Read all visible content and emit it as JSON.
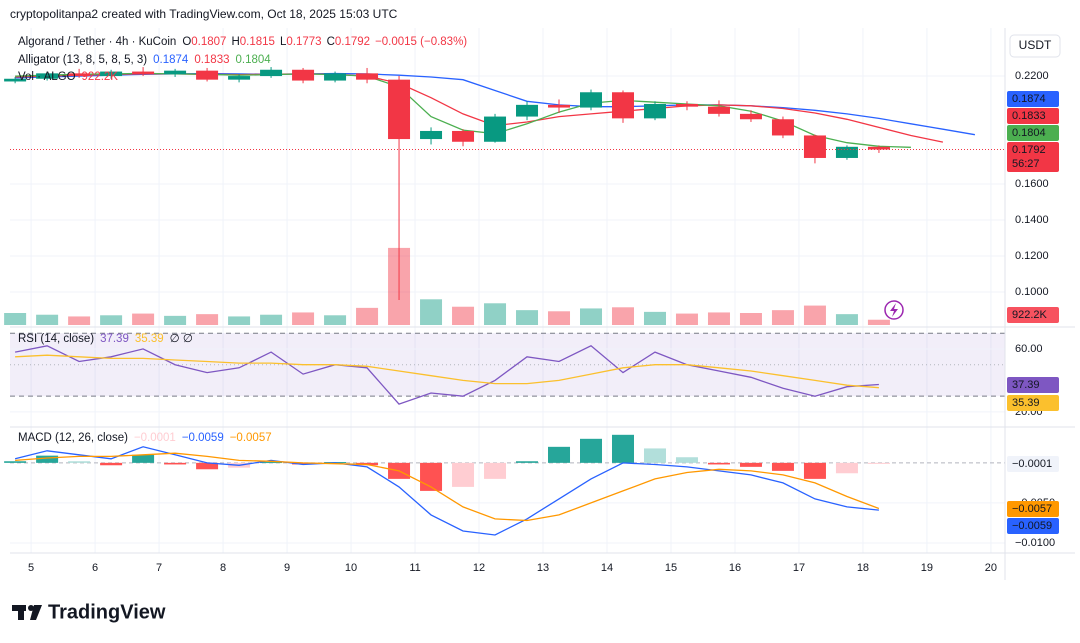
{
  "header": "cryptopolitanpa2 created with TradingView.com, Oct 18, 2025 15:03 UTC",
  "footer": "TradingView",
  "time_axis": {
    "xlim": [
      4.67,
      20.22
    ],
    "xticks": [
      5,
      6,
      7,
      8,
      9,
      10,
      11,
      12,
      13,
      14,
      15,
      16,
      17,
      18,
      19,
      20
    ]
  },
  "chart_data": [
    {
      "type": "candlestick",
      "title": "Algorand / Tether · 4h · KuCoin",
      "ohlc_labels": [
        "O",
        "H",
        "L",
        "C"
      ],
      "change": "−0.0015 (−0.83%)",
      "currency": "USDT",
      "countdown": "56:27",
      "up_color": "#089981",
      "down_color": "#f23645",
      "x": [
        4.75,
        5.25,
        5.75,
        6.25,
        6.75,
        7.25,
        7.75,
        8.25,
        8.75,
        9.25,
        9.75,
        10.25,
        10.75,
        11.25,
        11.75,
        12.25,
        12.75,
        13.25,
        13.75,
        14.25,
        14.75,
        15.25,
        15.75,
        16.25,
        16.75,
        17.25,
        17.75,
        18.25
      ],
      "open": [
        0.217,
        0.2185,
        0.2215,
        0.22,
        0.2225,
        0.221,
        0.223,
        0.218,
        0.22,
        0.2235,
        0.2175,
        0.2215,
        0.218,
        0.185,
        0.1895,
        0.1835,
        0.1975,
        0.204,
        0.2025,
        0.211,
        0.1965,
        0.2045,
        0.203,
        0.199,
        0.196,
        0.187,
        0.1745,
        0.1807
      ],
      "high": [
        0.2195,
        0.2225,
        0.224,
        0.2235,
        0.225,
        0.224,
        0.2245,
        0.221,
        0.225,
        0.2245,
        0.2225,
        0.2245,
        0.22,
        0.1915,
        0.1905,
        0.199,
        0.206,
        0.207,
        0.2125,
        0.212,
        0.206,
        0.206,
        0.2065,
        0.201,
        0.1975,
        0.1875,
        0.1815,
        0.1815
      ],
      "low": [
        0.216,
        0.2175,
        0.219,
        0.2185,
        0.22,
        0.2195,
        0.217,
        0.2165,
        0.219,
        0.216,
        0.2165,
        0.216,
        0.0956,
        0.182,
        0.181,
        0.183,
        0.1955,
        0.1995,
        0.201,
        0.194,
        0.1955,
        0.201,
        0.1975,
        0.1945,
        0.1855,
        0.1715,
        0.1735,
        0.1773
      ],
      "close": [
        0.2185,
        0.2215,
        0.22,
        0.2225,
        0.221,
        0.223,
        0.218,
        0.22,
        0.2235,
        0.2175,
        0.2215,
        0.218,
        0.185,
        0.1895,
        0.1835,
        0.1975,
        0.204,
        0.2025,
        0.211,
        0.1965,
        0.2045,
        0.203,
        0.199,
        0.196,
        0.187,
        0.1745,
        0.1807,
        0.1792
      ],
      "ylim": [
        0.0817,
        0.2467
      ],
      "yticks": [
        {
          "value": 0.22,
          "label": "0.2200"
        },
        {
          "value": 0.16,
          "label": "0.1600"
        },
        {
          "value": 0.14,
          "label": "0.1400"
        },
        {
          "value": 0.12,
          "label": "0.1200"
        },
        {
          "value": 0.1,
          "label": "0.1000"
        }
      ],
      "indicator": "Alligator (13, 8, 5, 8, 5, 3)",
      "series": [
        {
          "color": "#2962ff",
          "x": [
            4.75,
            5.25,
            5.75,
            6.25,
            6.75,
            7.25,
            7.75,
            8.25,
            8.75,
            9.25,
            9.75,
            10.25,
            10.75,
            11.25,
            11.75,
            12.25,
            12.75,
            13.25,
            13.75,
            14.25,
            14.75,
            15.25,
            15.75,
            16.25,
            16.75,
            17.25,
            17.75,
            18.25,
            18.75,
            19.25,
            19.75
          ],
          "values": [
            0.219,
            0.2195,
            0.22,
            0.2205,
            0.221,
            0.2212,
            0.2214,
            0.2212,
            0.221,
            0.2212,
            0.2214,
            0.2212,
            0.2205,
            0.2195,
            0.218,
            0.212,
            0.206,
            0.204,
            0.203,
            0.203,
            0.2035,
            0.204,
            0.204,
            0.2035,
            0.2025,
            0.201,
            0.199,
            0.1965,
            0.1935,
            0.1905,
            0.1874
          ]
        },
        {
          "color": "#f23645",
          "x": [
            4.75,
            5.25,
            5.75,
            6.25,
            6.75,
            7.25,
            7.75,
            8.25,
            8.75,
            9.25,
            9.75,
            10.25,
            10.75,
            11.25,
            11.75,
            12.25,
            12.75,
            13.25,
            13.75,
            14.25,
            14.75,
            15.25,
            15.75,
            16.25,
            16.75,
            17.25,
            17.75,
            18.25,
            18.75,
            19.25
          ],
          "values": [
            0.2195,
            0.22,
            0.2205,
            0.221,
            0.2212,
            0.2212,
            0.221,
            0.2208,
            0.221,
            0.2212,
            0.221,
            0.22,
            0.216,
            0.208,
            0.199,
            0.1925,
            0.1945,
            0.1975,
            0.199,
            0.2005,
            0.202,
            0.2035,
            0.204,
            0.2035,
            0.202,
            0.1995,
            0.196,
            0.1915,
            0.187,
            0.1833
          ]
        },
        {
          "color": "#4caf50",
          "x": [
            4.75,
            5.25,
            5.75,
            6.25,
            6.75,
            7.25,
            7.75,
            8.25,
            8.75,
            9.25,
            9.75,
            10.25,
            10.75,
            11.25,
            11.75,
            12.25,
            12.75,
            13.25,
            13.75,
            14.25,
            14.75,
            15.25,
            15.75,
            16.25,
            16.75,
            17.25,
            17.75,
            18.25,
            18.75
          ],
          "values": [
            0.22,
            0.2205,
            0.221,
            0.2212,
            0.2215,
            0.2212,
            0.221,
            0.2205,
            0.2208,
            0.2212,
            0.2208,
            0.22,
            0.214,
            0.1975,
            0.19,
            0.188,
            0.1935,
            0.2,
            0.205,
            0.2065,
            0.2055,
            0.2045,
            0.2035,
            0.2005,
            0.195,
            0.187,
            0.183,
            0.181,
            0.1804
          ]
        }
      ],
      "volume": {
        "title": "Vol · ALGO",
        "value_label": "922.2K",
        "lim": [
          0,
          52000000
        ],
        "values": [
          2100000,
          1800000,
          1500000,
          1700000,
          2000000,
          1600000,
          1900000,
          1500000,
          1800000,
          2200000,
          1700000,
          3000000,
          13500000,
          4500000,
          3200000,
          3800000,
          2600000,
          2400000,
          2900000,
          3100000,
          2300000,
          2000000,
          2200000,
          2100000,
          2600000,
          3400000,
          1900000,
          922200
        ]
      }
    },
    {
      "type": "line",
      "title": "RSI (14, close)",
      "extra_legend": "∅ ∅",
      "x": [
        4.75,
        5.25,
        5.75,
        6.25,
        6.75,
        7.25,
        7.75,
        8.25,
        8.75,
        9.25,
        9.75,
        10.25,
        10.75,
        11.25,
        11.75,
        12.25,
        12.75,
        13.25,
        13.75,
        14.25,
        14.75,
        15.25,
        15.75,
        16.25,
        16.75,
        17.25,
        17.75,
        18.25
      ],
      "series": [
        {
          "color": "#7e57c2",
          "values": [
            58,
            62,
            52,
            55,
            60,
            50,
            45,
            48,
            58,
            44,
            50,
            48,
            25,
            32,
            30,
            40,
            55,
            52,
            62,
            45,
            58,
            50,
            46,
            42,
            35,
            30,
            36,
            37.39
          ]
        },
        {
          "color": "#fbc02d",
          "values": [
            55,
            56,
            55,
            54,
            54,
            53,
            52,
            51,
            51,
            50,
            50,
            49,
            46,
            43,
            40,
            38,
            38,
            40,
            44,
            48,
            50,
            50,
            48,
            46,
            43,
            40,
            37,
            35.39
          ]
        }
      ],
      "bands": {
        "upper": 70,
        "middle": 50,
        "lower": 30
      },
      "ylim": [
        11.7,
        73.3
      ],
      "yticks": [
        {
          "value": 60,
          "label": "60.00"
        },
        {
          "value": 20,
          "label": "20.00"
        }
      ]
    },
    {
      "type": "macd",
      "title": "MACD (12, 26, close)",
      "legend_values": [
        "−0.0001",
        "−0.0059",
        "−0.0057"
      ],
      "x": [
        4.75,
        5.25,
        5.75,
        6.25,
        6.75,
        7.25,
        7.75,
        8.25,
        8.75,
        9.25,
        9.75,
        10.25,
        10.75,
        11.25,
        11.75,
        12.25,
        12.75,
        13.25,
        13.75,
        14.25,
        14.75,
        15.25,
        15.75,
        16.25,
        16.75,
        17.25,
        17.75,
        18.25
      ],
      "histogram": [
        0.0002,
        0.0009,
        0.0002,
        -0.0003,
        0.001,
        -0.0002,
        -0.0008,
        -0.0006,
        0.0001,
        -0.0002,
        0.0001,
        -0.0003,
        -0.002,
        -0.0035,
        -0.003,
        -0.002,
        0.0002,
        0.002,
        0.003,
        0.0035,
        0.0018,
        0.0007,
        -0.0002,
        -0.0005,
        -0.001,
        -0.002,
        -0.0013,
        -0.0001
      ],
      "histogram_colors": {
        "positive_rising": "#26a69a",
        "positive_falling": "#b2dfdb",
        "negative_rising": "#ffcdd2",
        "negative_falling": "#ff5252"
      },
      "series": [
        {
          "color": "#2962ff",
          "values": [
            0.0005,
            0.0015,
            0.001,
            0.0005,
            0.002,
            0.001,
            0.0,
            -0.0003,
            0.0003,
            -0.0002,
            0.0,
            -0.0005,
            -0.003,
            -0.0065,
            -0.0085,
            -0.009,
            -0.007,
            -0.0045,
            -0.002,
            0.0,
            -0.0002,
            -0.0005,
            -0.001,
            -0.0015,
            -0.0025,
            -0.0045,
            -0.0055,
            -0.0059
          ]
        },
        {
          "color": "#ff9800",
          "values": [
            0.0003,
            0.0006,
            0.0008,
            0.0008,
            0.001,
            0.0012,
            0.0008,
            0.0003,
            0.0002,
            0.0,
            -0.0001,
            -0.0002,
            -0.001,
            -0.003,
            -0.0055,
            -0.007,
            -0.0072,
            -0.0065,
            -0.005,
            -0.0035,
            -0.002,
            -0.0012,
            -0.0008,
            -0.001,
            -0.0015,
            -0.0025,
            -0.0042,
            -0.0057
          ]
        }
      ],
      "ylim": [
        -0.01125,
        0.0041
      ],
      "yticks": [
        {
          "value": -0.005,
          "label": "−0.0050"
        },
        {
          "value": -0.01,
          "label": "−0.0100"
        }
      ]
    }
  ]
}
